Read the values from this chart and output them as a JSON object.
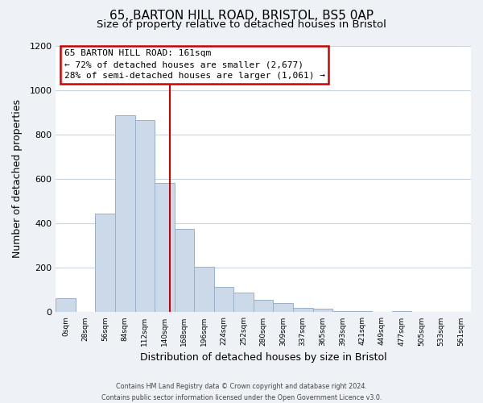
{
  "title_line1": "65, BARTON HILL ROAD, BRISTOL, BS5 0AP",
  "title_line2": "Size of property relative to detached houses in Bristol",
  "xlabel": "Distribution of detached houses by size in Bristol",
  "ylabel": "Number of detached properties",
  "bar_labels": [
    "0sqm",
    "28sqm",
    "56sqm",
    "84sqm",
    "112sqm",
    "140sqm",
    "168sqm",
    "196sqm",
    "224sqm",
    "252sqm",
    "280sqm",
    "309sqm",
    "337sqm",
    "365sqm",
    "393sqm",
    "421sqm",
    "449sqm",
    "477sqm",
    "505sqm",
    "533sqm",
    "561sqm"
  ],
  "bar_values": [
    65,
    0,
    445,
    885,
    865,
    580,
    375,
    205,
    115,
    90,
    55,
    40,
    20,
    15,
    5,
    5,
    0,
    5,
    0,
    0,
    0
  ],
  "bar_color": "#ccd9e8",
  "bar_edge_color": "#9ab0c8",
  "annotation_text_line1": "65 BARTON HILL ROAD: 161sqm",
  "annotation_text_line2": "← 72% of detached houses are smaller (2,677)",
  "annotation_text_line3": "28% of semi-detached houses are larger (1,061) →",
  "annotation_box_color": "#ffffff",
  "annotation_box_edge_color": "#cc0000",
  "vline_color": "#cc0000",
  "ylim": [
    0,
    1200
  ],
  "footer_line1": "Contains HM Land Registry data © Crown copyright and database right 2024.",
  "footer_line2": "Contains public sector information licensed under the Open Government Licence v3.0.",
  "background_color": "#eef2f7",
  "plot_background": "#ffffff",
  "grid_color": "#c8d4e0",
  "title1_fontsize": 11,
  "title2_fontsize": 9.5
}
